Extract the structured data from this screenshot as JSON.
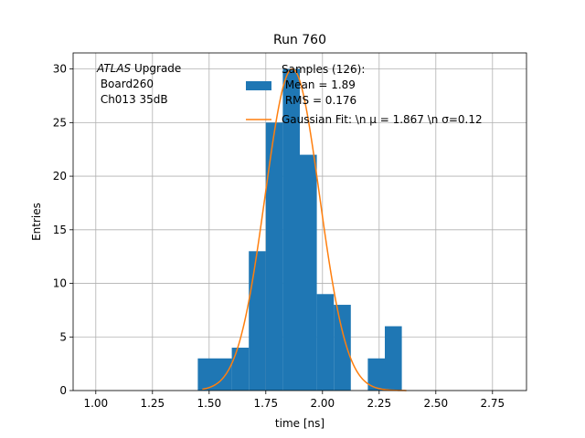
{
  "chart_data": {
    "type": "bar",
    "title": "Run 760",
    "xlabel": "time [ns]",
    "ylabel": "Entries",
    "xlim": [
      0.9,
      2.9
    ],
    "ylim": [
      0,
      31.5
    ],
    "xticks": [
      "1.00",
      "1.25",
      "1.50",
      "1.75",
      "2.00",
      "2.25",
      "2.50",
      "2.75"
    ],
    "xtick_values": [
      1.0,
      1.25,
      1.5,
      1.75,
      2.0,
      2.25,
      2.5,
      2.75
    ],
    "yticks": [
      "0",
      "5",
      "10",
      "15",
      "20",
      "25",
      "30"
    ],
    "ytick_values": [
      0,
      5,
      10,
      15,
      20,
      25,
      30
    ],
    "grid": true,
    "histogram": {
      "name": "Samples",
      "color": "#1f77b4",
      "bin_width": 0.075,
      "bins": [
        {
          "left": 1.45,
          "count": 3
        },
        {
          "left": 1.525,
          "count": 3
        },
        {
          "left": 1.6,
          "count": 4
        },
        {
          "left": 1.675,
          "count": 13
        },
        {
          "left": 1.75,
          "count": 25
        },
        {
          "left": 1.825,
          "count": 30
        },
        {
          "left": 1.9,
          "count": 22
        },
        {
          "left": 1.975,
          "count": 9
        },
        {
          "left": 2.05,
          "count": 8
        },
        {
          "left": 2.125,
          "count": 0
        },
        {
          "left": 2.2,
          "count": 3
        },
        {
          "left": 2.275,
          "count": 6
        }
      ]
    },
    "fit": {
      "name": "Gaussian Fit",
      "color": "#ff7f0e",
      "amplitude": 30,
      "mu": 1.867,
      "sigma": 0.12,
      "x_range": [
        1.47,
        2.37
      ]
    },
    "legend": {
      "placement": "top-center",
      "samples_line1": "Samples (126):",
      "samples_line2": " Mean = 1.89",
      "samples_line3": " RMS = 0.176",
      "fit_label": "Gaussian Fit: \\n μ = 1.867 \\n σ=0.12"
    },
    "annotation": {
      "line1_italic": "ATLAS",
      "line1_rest": " Upgrade",
      "line2": " Board260",
      "line3": " Ch013 35dB"
    }
  }
}
